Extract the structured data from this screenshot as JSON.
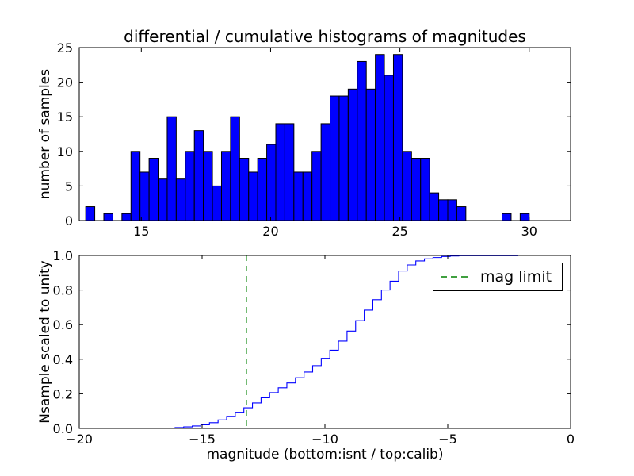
{
  "figure": {
    "title": "differential / cumulative histograms of magnitudes",
    "xlabel": "magnitude (bottom:isnt / top:calib)",
    "background": "#ffffff"
  },
  "chart_data": [
    {
      "type": "bar",
      "name": "differential-histogram-of-calib-magnitudes",
      "ylabel": "number of samples",
      "xlim": [
        12.6,
        31.6
      ],
      "ylim": [
        0,
        25
      ],
      "xticks": [
        15,
        20,
        25,
        30
      ],
      "xtick_labels": [
        "15",
        "20",
        "25",
        "30"
      ],
      "yticks": [
        0,
        5,
        10,
        15,
        20,
        25
      ],
      "ytick_labels": [
        "0",
        "5",
        "10",
        "15",
        "20",
        "25"
      ],
      "bar_color": "#0000ff",
      "bar_edge_color": "#000000",
      "bin_start": 12.85,
      "bin_width": 0.35,
      "counts": [
        2,
        0,
        1,
        0,
        1,
        10,
        7,
        9,
        6,
        15,
        6,
        10,
        13,
        10,
        5,
        10,
        15,
        9,
        7,
        9,
        11,
        14,
        14,
        7,
        7,
        10,
        14,
        18,
        18,
        19,
        23,
        19,
        24,
        21,
        24,
        10,
        9,
        9,
        4,
        3,
        3,
        2,
        0,
        0,
        0,
        0,
        1,
        0,
        1
      ],
      "grid": false
    },
    {
      "type": "line",
      "name": "cumulative-histogram-of-isnt-magnitudes",
      "ylabel": "Nsample scaled to unity",
      "xlabel": "magnitude (bottom:isnt / top:calib)",
      "xlim": [
        -20,
        0
      ],
      "ylim": [
        0.0,
        1.0
      ],
      "xticks": [
        -20,
        -15,
        -10,
        -5,
        0
      ],
      "xtick_labels": [
        "−20",
        "−15",
        "−10",
        "−5",
        "0"
      ],
      "yticks": [
        0.0,
        0.2,
        0.4,
        0.6,
        0.8,
        1.0
      ],
      "ytick_labels": [
        "0.0",
        "0.2",
        "0.4",
        "0.6",
        "0.8",
        "1.0"
      ],
      "line_color": "#0000ff",
      "edges": [
        -16.45,
        -16.1,
        -15.75,
        -15.4,
        -15.05,
        -14.7,
        -14.35,
        -14.0,
        -13.65,
        -13.3,
        -12.95,
        -12.6,
        -12.25,
        -11.9,
        -11.55,
        -11.2,
        -10.85,
        -10.5,
        -10.15,
        -9.8,
        -9.45,
        -9.1,
        -8.75,
        -8.4,
        -8.05,
        -7.7,
        -7.35,
        -7.0,
        -6.65,
        -6.3,
        -5.95,
        -5.6,
        -5.25,
        -4.9,
        -4.55,
        -4.2,
        -2.15,
        -1.8
      ],
      "cdf": [
        0.002,
        0.005,
        0.009,
        0.014,
        0.021,
        0.033,
        0.049,
        0.07,
        0.093,
        0.119,
        0.147,
        0.177,
        0.207,
        0.235,
        0.263,
        0.293,
        0.326,
        0.363,
        0.405,
        0.452,
        0.505,
        0.563,
        0.623,
        0.684,
        0.744,
        0.8,
        0.851,
        0.91,
        0.945,
        0.968,
        0.98,
        0.988,
        0.994,
        0.997,
        0.9985,
        0.9985,
        1.0
      ],
      "mag_limit": {
        "x": -13.2,
        "color": "#008000",
        "style": "dashed",
        "label": "mag limit"
      },
      "legend": {
        "label": "mag limit",
        "position": "upper right"
      },
      "grid": false
    }
  ]
}
